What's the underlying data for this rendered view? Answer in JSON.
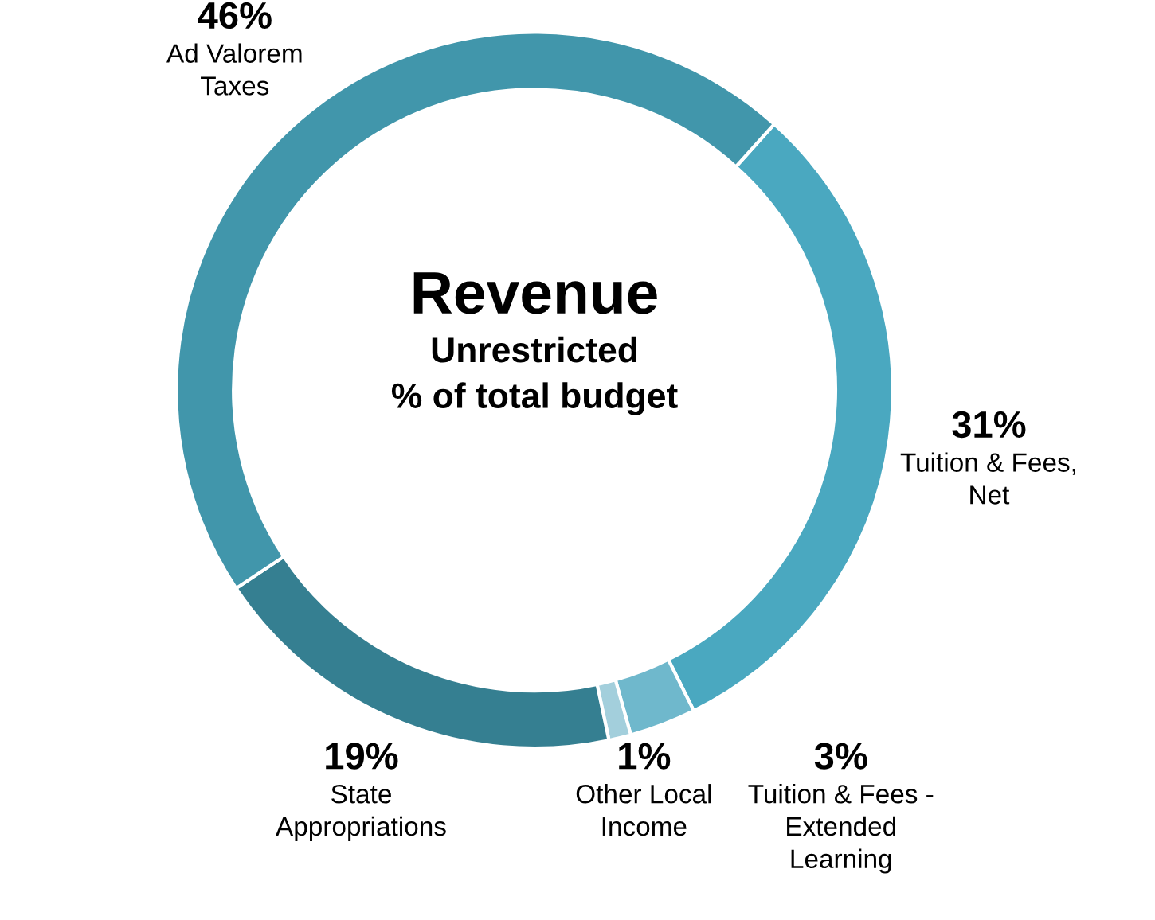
{
  "chart_data": {
    "type": "donut",
    "title": "Revenue",
    "subtitle": "Unrestricted\n% of total budget",
    "categories": [
      "Tuition & Fees,\nNet",
      "Tuition & Fees -\nExtended\nLearning",
      "Other Local\nIncome",
      "State\nAppropriations",
      "Ad Valorem\nTaxes"
    ],
    "values": [
      31,
      3,
      1,
      19,
      46
    ],
    "value_labels": [
      "31%",
      "3%",
      "1%",
      "19%",
      "46%"
    ],
    "colors": [
      "#4aa8c0",
      "#6fb8cc",
      "#a3cfdc",
      "#357f91",
      "#4196ab"
    ],
    "legend": false
  }
}
